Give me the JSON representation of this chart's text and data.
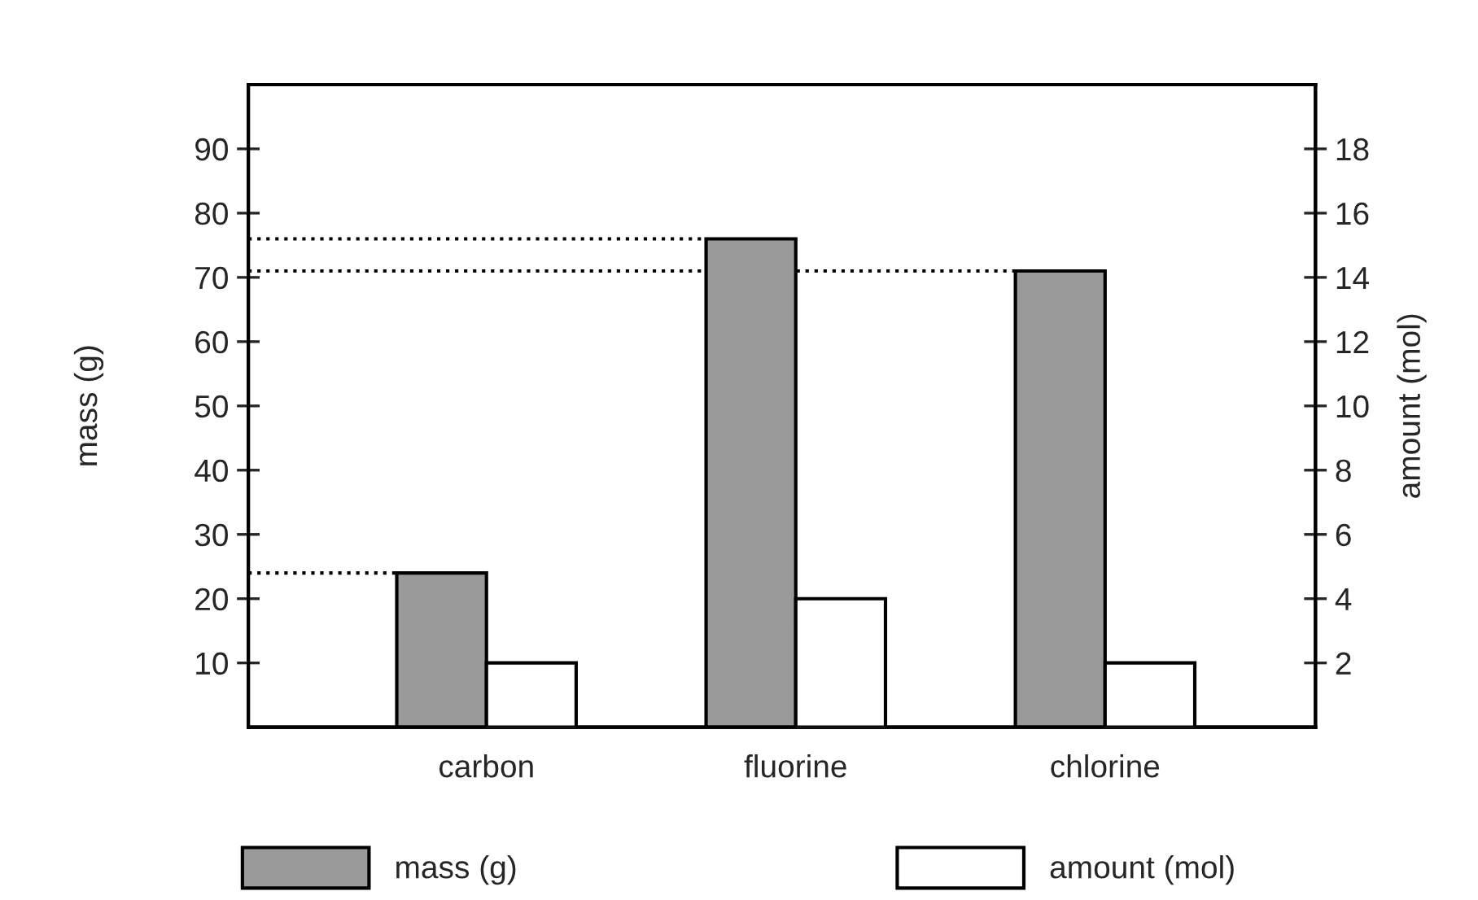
{
  "chart_data": {
    "type": "bar",
    "categories": [
      "carbon",
      "fluorine",
      "chlorine"
    ],
    "series": [
      {
        "name": "mass (g)",
        "color": "#9a9a9a",
        "values": [
          24,
          76,
          71
        ]
      },
      {
        "name": "amount (mol)",
        "color": "#ffffff",
        "values": [
          2,
          4,
          2
        ],
        "axis": "y2"
      }
    ],
    "ylabel": "mass (g)",
    "y2label": "amount (mol)",
    "ylim": [
      0,
      100
    ],
    "yticks": [
      10,
      20,
      30,
      40,
      50,
      60,
      70,
      80,
      90
    ],
    "y2lim": [
      0,
      20
    ],
    "y2ticks": [
      2,
      4,
      6,
      8,
      10,
      12,
      14,
      16,
      18
    ],
    "ref_lines": [
      {
        "axis": "y",
        "value": 24,
        "line_style": "dotted"
      },
      {
        "axis": "y",
        "value": 76,
        "line_style": "dotted"
      },
      {
        "axis": "y",
        "value": 71,
        "line_style": "dotted"
      }
    ],
    "legend": "bottom",
    "grid": false
  }
}
